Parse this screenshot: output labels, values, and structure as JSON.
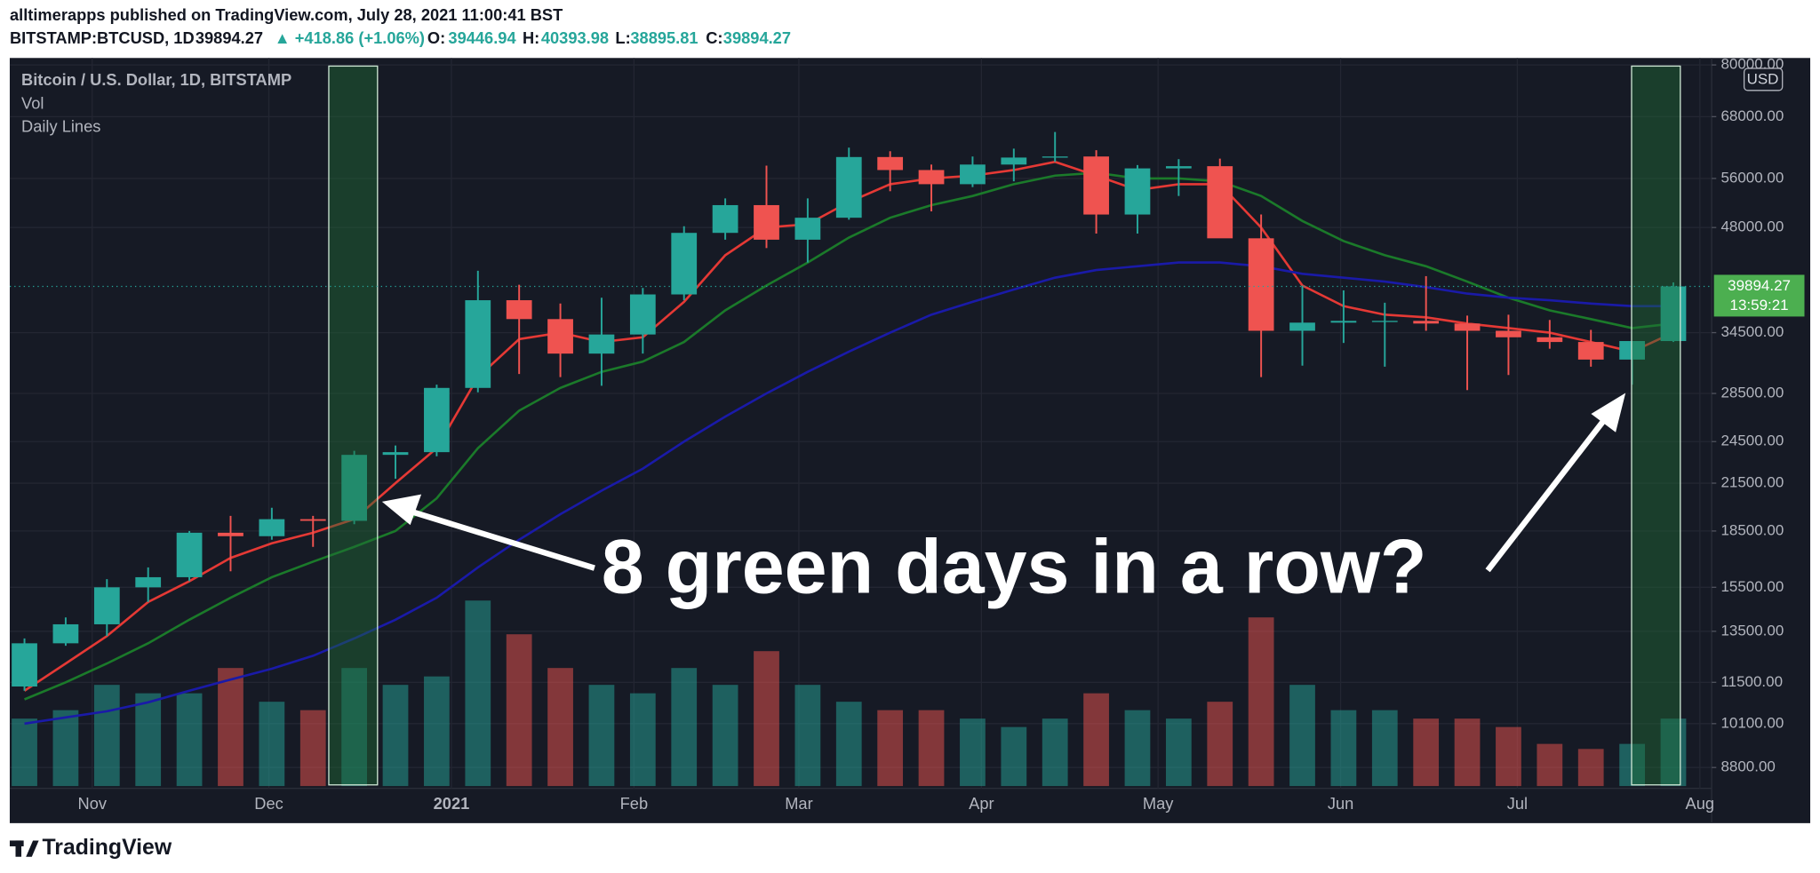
{
  "header": {
    "publisher": "alltimerapps published on TradingView.com, July 28, 2021 11:00:41 BST",
    "symbol": "BITSTAMP:BTCUSD, 1D",
    "last": "39894.27",
    "change": "▲ +418.86 (+1.06%)",
    "o_label": "O:",
    "o": "39446.94",
    "h_label": "H:",
    "h": "40393.98",
    "l_label": "L:",
    "l": "38895.81",
    "c_label": "C:",
    "c": "39894.27"
  },
  "footer": {
    "brand": "TradingView"
  },
  "chart_data": {
    "type": "candlestick",
    "title": "Bitcoin / U.S. Dollar, 1D, BITSTAMP",
    "indicator_label": "Daily Lines",
    "currency": "USD",
    "timer": "13:59:21",
    "annotation": "8 green days in a row?",
    "log_scale": true,
    "grid": true,
    "up_color": "#26a69a",
    "down_color": "#ef5350",
    "xlim": [
      "2020-10-18",
      "2021-08-03"
    ],
    "xticks": [
      {
        "value": "2020-11-01",
        "label": "Nov"
      },
      {
        "value": "2020-12-01",
        "label": "Dec"
      },
      {
        "value": "2021-01-01",
        "label": "2021"
      },
      {
        "value": "2021-02-01",
        "label": "Feb"
      },
      {
        "value": "2021-03-01",
        "label": "Mar"
      },
      {
        "value": "2021-04-01",
        "label": "Apr"
      },
      {
        "value": "2021-05-01",
        "label": "May"
      },
      {
        "value": "2021-06-01",
        "label": "Jun"
      },
      {
        "value": "2021-07-01",
        "label": "Jul"
      },
      {
        "value": "2021-08-01",
        "label": "Aug"
      }
    ],
    "ylim": [
      8800,
      80000
    ],
    "yticks": [
      {
        "value": 80000,
        "label": "80000.00"
      },
      {
        "value": 68000,
        "label": "68000.00"
      },
      {
        "value": 56000,
        "label": "56000.00"
      },
      {
        "value": 48000,
        "label": "48000.00"
      },
      {
        "value": 34500,
        "label": "34500.00"
      },
      {
        "value": 28500,
        "label": "28500.00"
      },
      {
        "value": 24500,
        "label": "24500.00"
      },
      {
        "value": 21500,
        "label": "21500.00"
      },
      {
        "value": 18500,
        "label": "18500.00"
      },
      {
        "value": 15500,
        "label": "15500.00"
      },
      {
        "value": 13500,
        "label": "13500.00"
      },
      {
        "value": 11500,
        "label": "11500.00"
      },
      {
        "value": 10100,
        "label": "10100.00"
      },
      {
        "value": 8800,
        "label": "8800.00"
      }
    ],
    "candles": {
      "x": [
        "2020-10-17",
        "2020-10-24",
        "2020-10-31",
        "2020-11-07",
        "2020-11-14",
        "2020-11-21",
        "2020-11-28",
        "2020-12-05",
        "2020-12-12",
        "2020-12-19",
        "2020-12-26",
        "2021-01-02",
        "2021-01-09",
        "2021-01-16",
        "2021-01-23",
        "2021-01-30",
        "2021-02-06",
        "2021-02-13",
        "2021-02-20",
        "2021-02-27",
        "2021-03-06",
        "2021-03-13",
        "2021-03-20",
        "2021-03-27",
        "2021-04-03",
        "2021-04-10",
        "2021-04-17",
        "2021-04-24",
        "2021-05-01",
        "2021-05-08",
        "2021-05-15",
        "2021-05-22",
        "2021-05-29",
        "2021-06-05",
        "2021-06-12",
        "2021-06-19",
        "2021-06-26",
        "2021-07-03",
        "2021-07-10",
        "2021-07-17",
        "2021-07-24"
      ],
      "open": [
        11350,
        13000,
        13800,
        15500,
        16000,
        18400,
        18200,
        19200,
        19100,
        23500,
        23700,
        29000,
        38200,
        36000,
        32300,
        34300,
        38900,
        47200,
        51500,
        46200,
        49500,
        59900,
        57500,
        55000,
        58500,
        59800,
        60000,
        50000,
        57800,
        58200,
        46400,
        34700,
        35600,
        35800,
        35800,
        35500,
        34700,
        34000,
        33500,
        31700,
        33600
      ],
      "high": [
        13200,
        14100,
        15900,
        16500,
        18500,
        19400,
        19900,
        19400,
        23800,
        24200,
        29300,
        41900,
        40100,
        37800,
        38500,
        39700,
        48200,
        52600,
        58300,
        52600,
        61700,
        61000,
        58500,
        60000,
        61500,
        64800,
        61200,
        58400,
        59500,
        59600,
        50000,
        40000,
        39400,
        37900,
        41200,
        36400,
        36500,
        35900,
        34800,
        32600,
        40400
      ],
      "low": [
        11200,
        12900,
        13300,
        14800,
        15800,
        16300,
        18000,
        17600,
        18900,
        21800,
        23400,
        28600,
        30300,
        30000,
        29200,
        32300,
        38200,
        46200,
        45000,
        43000,
        49200,
        53800,
        50500,
        54500,
        55500,
        59000,
        47100,
        47100,
        53000,
        46900,
        30000,
        31100,
        33400,
        31000,
        34700,
        28800,
        30200,
        32800,
        31000,
        29300,
        33500
      ],
      "close": [
        13000,
        13800,
        15500,
        16000,
        18400,
        18200,
        19200,
        19100,
        23500,
        23700,
        29000,
        38200,
        36000,
        32300,
        34300,
        38900,
        47200,
        51500,
        46200,
        49500,
        59900,
        57500,
        55000,
        58500,
        59800,
        60000,
        50000,
        57800,
        58200,
        46400,
        34700,
        35600,
        35800,
        35800,
        35500,
        34700,
        34000,
        33500,
        31700,
        33600,
        39894.27
      ]
    },
    "volume": {
      "name": "Vol",
      "values": [
        40,
        45,
        60,
        55,
        55,
        70,
        50,
        45,
        70,
        60,
        65,
        110,
        90,
        70,
        60,
        55,
        70,
        60,
        80,
        60,
        50,
        45,
        45,
        40,
        35,
        40,
        55,
        45,
        40,
        50,
        100,
        60,
        45,
        45,
        40,
        40,
        35,
        25,
        22,
        25,
        40
      ]
    },
    "series": [
      {
        "color": "#e53935",
        "values": [
          11200,
          12200,
          13300,
          14800,
          15800,
          17000,
          17800,
          18400,
          19200,
          21500,
          24000,
          30000,
          33800,
          34500,
          33500,
          34000,
          38000,
          44000,
          48000,
          48500,
          52000,
          55000,
          56000,
          56500,
          57500,
          59000,
          56500,
          54000,
          55000,
          55000,
          48000,
          40000,
          37500,
          36500,
          36200,
          35500,
          35000,
          34500,
          33500,
          32500,
          34500
        ]
      },
      {
        "color": "#1b7a2a",
        "values": [
          10900,
          11500,
          12200,
          13000,
          14000,
          15000,
          16000,
          16800,
          17600,
          18500,
          20500,
          24000,
          27000,
          29000,
          30500,
          31500,
          33500,
          37000,
          40000,
          43000,
          46500,
          49500,
          51500,
          53000,
          55000,
          56500,
          57000,
          56000,
          56000,
          55500,
          53000,
          49000,
          46000,
          44000,
          42500,
          40500,
          38500,
          37000,
          36000,
          35000,
          35500
        ]
      },
      {
        "color": "#1a1aa8",
        "values": [
          10100,
          10300,
          10500,
          10800,
          11200,
          11600,
          12000,
          12500,
          13200,
          14000,
          15000,
          16500,
          18000,
          19500,
          21000,
          22500,
          24500,
          26500,
          28500,
          30500,
          32500,
          34500,
          36500,
          38000,
          39500,
          41000,
          42000,
          42500,
          43000,
          43000,
          42500,
          41500,
          41000,
          40500,
          39800,
          39000,
          38500,
          38200,
          37800,
          37500,
          37500
        ]
      }
    ]
  }
}
